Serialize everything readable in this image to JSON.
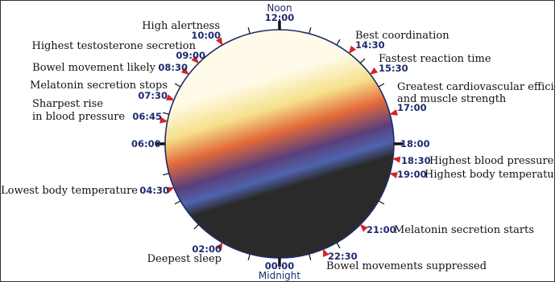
{
  "colors": {
    "rim": "#1f2a6e",
    "time_text": "#1f2a6e",
    "marker": "#d0262a",
    "day_top": "#fffbe8",
    "day_mid": "#f5e08a",
    "dusk": "#e36a3a",
    "twilight": "#5a3f7c",
    "night_blue": "#4f63ad",
    "night_dark": "#2a2a2a"
  },
  "labels": {
    "noon": "Noon",
    "noon_time": "12:00",
    "midnight": "Midnight",
    "midnight_time": "00:00",
    "six_am": "06:00",
    "six_pm": "18:00"
  },
  "events": [
    {
      "time": "10:00",
      "text": "High alertness"
    },
    {
      "time": "09:00",
      "text": "Highest testosterone secretion"
    },
    {
      "time": "08:30",
      "text": "Bowel movement likely"
    },
    {
      "time": "07:30",
      "text": "Melatonin secretion stops"
    },
    {
      "time": "06:45",
      "text_line1": "Sharpest rise",
      "text_line2": "in blood pressure"
    },
    {
      "time": "04:30",
      "text": "Lowest body temperature"
    },
    {
      "time": "02:00",
      "text": "Deepest sleep"
    },
    {
      "time": "14:30",
      "text": "Best coordination"
    },
    {
      "time": "15:30",
      "text": "Fastest reaction time"
    },
    {
      "time": "17:00",
      "text_line1": "Greatest cardiovascular efficiency",
      "text_line2": "and muscle strength"
    },
    {
      "time": "18:30",
      "text": "Highest blood pressure"
    },
    {
      "time": "19:00",
      "text": "Highest body temperature"
    },
    {
      "time": "21:00",
      "text": "Melatonin secretion starts"
    },
    {
      "time": "22:30",
      "text": "Bowel movements suppressed"
    }
  ]
}
